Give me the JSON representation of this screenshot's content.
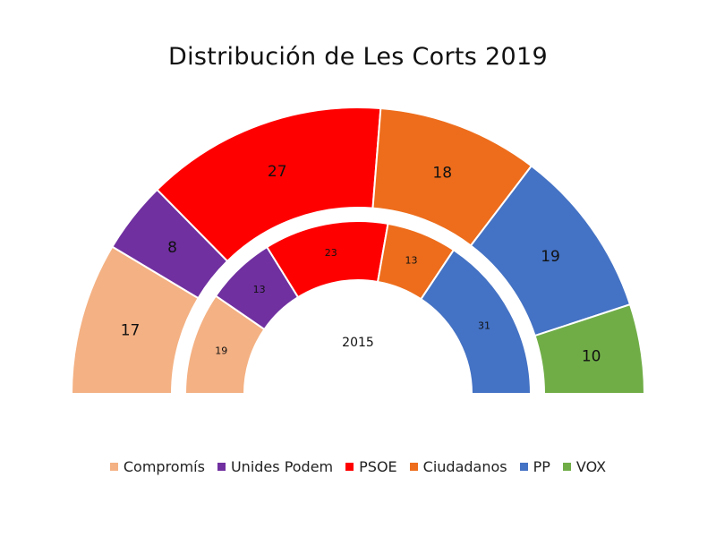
{
  "chart_data": {
    "type": "pie",
    "subtype": "parliament-semicircle",
    "title": "Distribución de Les Corts 2019",
    "legend_position": "bottom",
    "parties": [
      {
        "name": "Compromís",
        "color": "#F4B183"
      },
      {
        "name": "Unides Podem",
        "color": "#7030A0"
      },
      {
        "name": "PSOE",
        "color": "#FF0000"
      },
      {
        "name": "Ciudadanos",
        "color": "#ED6D1C"
      },
      {
        "name": "PP",
        "color": "#4472C4"
      },
      {
        "name": "VOX",
        "color": "#70AD47"
      }
    ],
    "series": [
      {
        "name": "2019",
        "ring": "outer",
        "values": [
          17,
          8,
          27,
          18,
          19,
          10
        ]
      },
      {
        "name": "2015",
        "ring": "inner",
        "label": "2015",
        "values": [
          19,
          13,
          23,
          13,
          31,
          0
        ]
      }
    ]
  }
}
